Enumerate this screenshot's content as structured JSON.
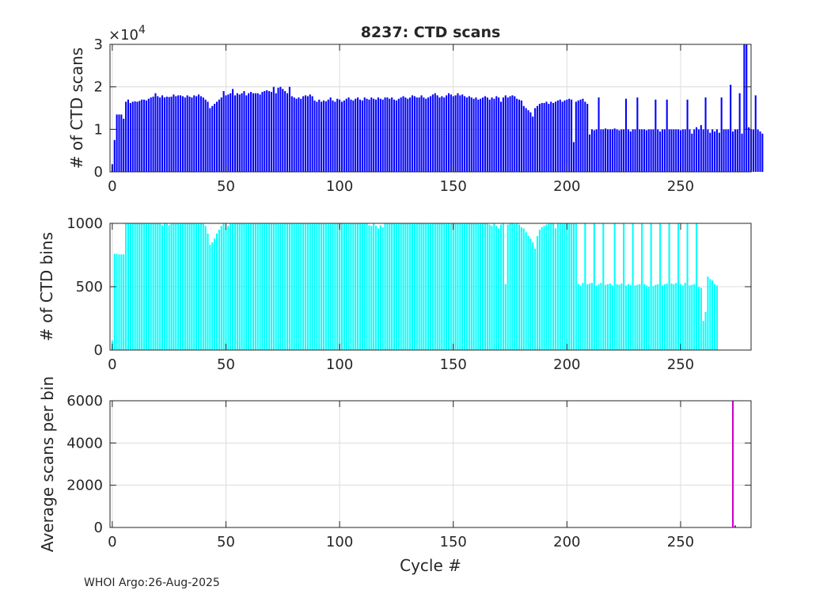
{
  "figure_title": "8237: CTD scans",
  "footer": "WHOI Argo:26-Aug-2025",
  "chart_data": [
    {
      "type": "bar",
      "title": "8237: CTD scans",
      "xlabel": "",
      "ylabel": "# of CTD scans",
      "y_exponent_label": "×10",
      "y_exponent_power": "4",
      "color": "#0000ff",
      "xlim": [
        -1,
        281
      ],
      "ylim": [
        0,
        3
      ],
      "xticks": [
        0,
        50,
        100,
        150,
        200,
        250
      ],
      "yticks": [
        0,
        1,
        2,
        3
      ],
      "grid": true,
      "series": [
        {
          "name": "CTD scans (×10^4)",
          "values": [
            0.18,
            0.75,
            1.35,
            1.35,
            1.35,
            1.25,
            1.65,
            1.7,
            1.62,
            1.65,
            1.66,
            1.65,
            1.67,
            1.7,
            1.7,
            1.68,
            1.72,
            1.75,
            1.77,
            1.85,
            1.78,
            1.75,
            1.8,
            1.75,
            1.77,
            1.76,
            1.77,
            1.82,
            1.78,
            1.8,
            1.8,
            1.78,
            1.75,
            1.8,
            1.77,
            1.75,
            1.8,
            1.78,
            1.82,
            1.78,
            1.75,
            1.7,
            1.65,
            1.5,
            1.55,
            1.6,
            1.65,
            1.7,
            1.75,
            1.9,
            1.8,
            1.82,
            1.85,
            1.95,
            1.8,
            1.85,
            1.82,
            1.85,
            1.9,
            1.8,
            1.85,
            1.88,
            1.85,
            1.85,
            1.85,
            1.82,
            1.88,
            1.9,
            1.92,
            1.9,
            1.88,
            2.0,
            1.85,
            1.98,
            2.0,
            1.95,
            1.9,
            1.85,
            2.0,
            1.78,
            1.75,
            1.72,
            1.75,
            1.72,
            1.78,
            1.8,
            1.78,
            1.82,
            1.78,
            1.68,
            1.65,
            1.7,
            1.65,
            1.68,
            1.66,
            1.7,
            1.75,
            1.68,
            1.65,
            1.72,
            1.7,
            1.65,
            1.68,
            1.72,
            1.75,
            1.7,
            1.68,
            1.72,
            1.75,
            1.7,
            1.68,
            1.75,
            1.72,
            1.7,
            1.75,
            1.72,
            1.7,
            1.75,
            1.72,
            1.7,
            1.75,
            1.75,
            1.72,
            1.75,
            1.7,
            1.68,
            1.72,
            1.75,
            1.78,
            1.75,
            1.72,
            1.75,
            1.8,
            1.78,
            1.75,
            1.75,
            1.8,
            1.75,
            1.72,
            1.75,
            1.78,
            1.82,
            1.85,
            1.8,
            1.75,
            1.78,
            1.75,
            1.8,
            1.85,
            1.82,
            1.78,
            1.8,
            1.85,
            1.8,
            1.82,
            1.78,
            1.75,
            1.78,
            1.75,
            1.72,
            1.75,
            1.7,
            1.72,
            1.75,
            1.78,
            1.75,
            1.7,
            1.75,
            1.72,
            1.78,
            1.75,
            1.65,
            1.75,
            1.8,
            1.75,
            1.78,
            1.8,
            1.78,
            1.72,
            1.7,
            1.68,
            1.55,
            1.5,
            1.45,
            1.4,
            1.3,
            1.5,
            1.55,
            1.6,
            1.62,
            1.62,
            1.65,
            1.6,
            1.65,
            1.62,
            1.65,
            1.68,
            1.7,
            1.65,
            1.68,
            1.7,
            1.72,
            1.7,
            0.7,
            1.65,
            1.68,
            1.7,
            1.72,
            1.65,
            1.6,
            0.88,
            1.0,
            0.98,
            1.0,
            1.75,
            1.0,
            1.0,
            1.02,
            1.0,
            1.0,
            1.0,
            1.02,
            1.0,
            0.98,
            1.0,
            1.0,
            1.72,
            1.0,
            0.95,
            1.0,
            1.0,
            1.75,
            1.0,
            1.0,
            1.0,
            0.98,
            1.0,
            1.0,
            1.0,
            1.7,
            1.0,
            0.95,
            1.0,
            1.0,
            1.7,
            1.0,
            1.0,
            1.0,
            1.0,
            1.0,
            0.98,
            1.0,
            1.0,
            1.7,
            1.0,
            0.9,
            1.0,
            1.05,
            1.0,
            1.1,
            1.0,
            1.75,
            1.0,
            0.92,
            1.0,
            0.95,
            1.0,
            0.92,
            1.75,
            1.0,
            1.0,
            1.0,
            2.05,
            0.95,
            1.0,
            1.0,
            1.85,
            0.9,
            3.2,
            3.2,
            1.05,
            1.0,
            1.0,
            1.8,
            1.0,
            0.95,
            0.9
          ]
        }
      ]
    },
    {
      "type": "bar",
      "title": "",
      "xlabel": "",
      "ylabel": "# of CTD bins",
      "color": "#00ffff",
      "xlim": [
        -1,
        281
      ],
      "ylim": [
        0,
        1000
      ],
      "xticks": [
        0,
        50,
        100,
        150,
        200,
        250
      ],
      "yticks": [
        0,
        500,
        1000
      ],
      "grid": true,
      "series": [
        {
          "name": "CTD bins",
          "values": [
            75,
            760,
            760,
            755,
            755,
            755,
            1000,
            1000,
            1000,
            1000,
            1000,
            1000,
            1000,
            1000,
            1000,
            1000,
            1000,
            1000,
            1000,
            1000,
            1000,
            1000,
            985,
            1000,
            1000,
            985,
            1000,
            1000,
            1000,
            1000,
            1000,
            1000,
            1000,
            1000,
            1000,
            1000,
            1000,
            1000,
            1000,
            1000,
            1000,
            980,
            920,
            830,
            850,
            880,
            920,
            950,
            980,
            1000,
            960,
            980,
            1000,
            1000,
            1000,
            1000,
            1000,
            1000,
            1000,
            1000,
            1000,
            1000,
            1000,
            1000,
            1000,
            1000,
            1000,
            1000,
            1000,
            1000,
            1000,
            1000,
            1000,
            1000,
            1000,
            1000,
            1000,
            1000,
            1000,
            1000,
            1000,
            1000,
            1000,
            1000,
            1000,
            1000,
            1000,
            1000,
            1000,
            1000,
            1000,
            1000,
            1000,
            1000,
            1000,
            1000,
            1000,
            1000,
            1000,
            1000,
            1000,
            1000,
            1000,
            1000,
            1000,
            1000,
            1000,
            1000,
            1000,
            1000,
            1000,
            1000,
            1000,
            985,
            980,
            1000,
            980,
            960,
            985,
            970,
            1000,
            1000,
            1000,
            1000,
            1000,
            1000,
            1000,
            1000,
            1000,
            1000,
            1000,
            1000,
            1000,
            1000,
            1000,
            1000,
            1000,
            1000,
            1000,
            1000,
            1000,
            1000,
            1000,
            1000,
            1000,
            1000,
            1000,
            1000,
            1000,
            1000,
            1000,
            1000,
            1000,
            1000,
            1000,
            1000,
            1000,
            1000,
            1000,
            1000,
            1000,
            1000,
            1000,
            1000,
            1000,
            1000,
            990,
            980,
            1000,
            980,
            960,
            990,
            1000,
            520,
            990,
            1000,
            1000,
            995,
            1000,
            990,
            970,
            960,
            930,
            900,
            880,
            850,
            800,
            900,
            950,
            970,
            980,
            990,
            1000,
            1000,
            1000,
            960,
            1000,
            1000,
            1000,
            1000,
            1000,
            1000,
            1000,
            1000,
            1000,
            520,
            510,
            530,
            1000,
            520,
            525,
            530,
            1000,
            510,
            520,
            530,
            1000,
            515,
            520,
            525,
            510,
            1000,
            520,
            515,
            525,
            1000,
            510,
            520,
            515,
            1000,
            510,
            515,
            520,
            1000,
            520,
            510,
            500,
            1000,
            505,
            515,
            520,
            1000,
            510,
            520,
            525,
            1000,
            525,
            520,
            530,
            1000,
            520,
            510,
            530,
            1000,
            510,
            515,
            520,
            1000,
            500,
            490,
            230,
            300,
            580,
            560,
            550,
            520,
            510
          ]
        }
      ]
    },
    {
      "type": "bar",
      "title": "",
      "xlabel": "Cycle #",
      "ylabel": "Average scans per bin",
      "color": "#cc00cc",
      "xlim": [
        -1,
        281
      ],
      "ylim": [
        0,
        6000
      ],
      "xticks": [
        0,
        50,
        100,
        150,
        200,
        250
      ],
      "yticks": [
        0,
        2000,
        4000,
        6000
      ],
      "grid": true,
      "series": [
        {
          "name": "Average scans per bin",
          "x": [
            273,
            274
          ],
          "values": [
            6000,
            100
          ]
        }
      ]
    }
  ]
}
